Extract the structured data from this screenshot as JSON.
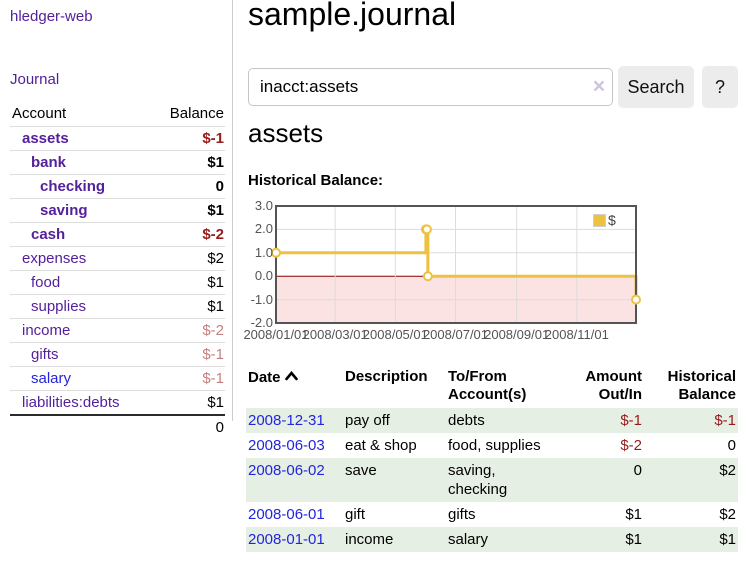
{
  "sidebar": {
    "brand": "hledger-web",
    "nav": {
      "journal": "Journal"
    },
    "accounts_table": {
      "headers": {
        "account": "Account",
        "balance": "Balance"
      },
      "rows": [
        {
          "name": "assets",
          "depth": 1,
          "bold": true,
          "link_color": "purple",
          "balance": "$-1",
          "balance_style": "neg"
        },
        {
          "name": "bank",
          "depth": 2,
          "bold": true,
          "link_color": "purple",
          "balance": "$1",
          "balance_style": "pos"
        },
        {
          "name": "checking",
          "depth": 3,
          "bold": true,
          "link_color": "purple",
          "balance": "0",
          "balance_style": "pos"
        },
        {
          "name": "saving",
          "depth": 3,
          "bold": true,
          "link_color": "purple",
          "balance": "$1",
          "balance_style": "pos"
        },
        {
          "name": "cash",
          "depth": 2,
          "bold": true,
          "link_color": "purple",
          "balance": "$-2",
          "balance_style": "neg"
        },
        {
          "name": "expenses",
          "depth": 1,
          "bold": false,
          "link_color": "purple",
          "balance": "$2",
          "balance_style": "pos"
        },
        {
          "name": "food",
          "depth": 2,
          "bold": false,
          "link_color": "purple",
          "balance": "$1",
          "balance_style": "pos"
        },
        {
          "name": "supplies",
          "depth": 2,
          "bold": false,
          "link_color": "purple",
          "balance": "$1",
          "balance_style": "pos"
        },
        {
          "name": "income",
          "depth": 1,
          "bold": false,
          "link_color": "purple",
          "balance": "$-2",
          "balance_style": "dim-neg"
        },
        {
          "name": "gifts",
          "depth": 2,
          "bold": false,
          "link_color": "purple",
          "balance": "$-1",
          "balance_style": "dim-neg"
        },
        {
          "name": "salary",
          "depth": 2,
          "bold": false,
          "link_color": "blue",
          "balance": "$-1",
          "balance_style": "dim-neg"
        },
        {
          "name": "liabilities:debts",
          "depth": 1,
          "bold": false,
          "link_color": "purple",
          "balance": "$1",
          "balance_style": "pos"
        }
      ],
      "total": "0"
    }
  },
  "header": {
    "title": "sample.journal",
    "search": {
      "value": "inacct:assets",
      "button": "Search",
      "help_button": "?"
    }
  },
  "icons": {
    "clear_search": "×",
    "sort_ascending": "chevron-up"
  },
  "account_page": {
    "heading": "assets"
  },
  "chart_data": {
    "type": "line",
    "step": true,
    "title": "Historical Balance:",
    "series": [
      {
        "name": "$",
        "color": "#edc240",
        "points": [
          [
            "2008-01-01",
            1
          ],
          [
            "2008-06-01",
            2
          ],
          [
            "2008-06-02",
            2
          ],
          [
            "2008-06-03",
            0
          ],
          [
            "2008-12-31",
            -1
          ]
        ]
      }
    ],
    "ylim": [
      -2.0,
      3.0
    ],
    "yticks": [
      "3.0",
      "2.0",
      "1.0",
      "0.0",
      "-1.0",
      "-2.0"
    ],
    "ytick_values": [
      3,
      2,
      1,
      0,
      -1,
      -2
    ],
    "xticks": [
      "2008/01/01",
      "2008/03/01",
      "2008/05/01",
      "2008/07/01",
      "2008/09/01",
      "2008/11/01"
    ],
    "legend": "$",
    "legend_position": "top-right",
    "grid": true,
    "colors": {
      "grid_line": "#dcdcdc",
      "border": "#545454",
      "zero_line": "#8b0000",
      "negative_region": "#fbe3e3",
      "marker_fill": "#ffffff"
    }
  },
  "register": {
    "headers": {
      "date": "Date",
      "description": "Description",
      "accounts": "To/From Account(s)",
      "amount": "Amount Out/In",
      "balance": "Historical Balance"
    },
    "rows": [
      {
        "date": "2008-12-31",
        "description": "pay off",
        "accounts": "debts",
        "amount": "$-1",
        "amount_negative": true,
        "balance": "$-1",
        "balance_negative": true
      },
      {
        "date": "2008-06-03",
        "description": "eat & shop",
        "accounts": "food, supplies",
        "amount": "$-2",
        "amount_negative": true,
        "balance": "0",
        "balance_negative": false
      },
      {
        "date": "2008-06-02",
        "description": "save",
        "accounts": "saving, checking",
        "amount": "0",
        "amount_negative": false,
        "balance": "$2",
        "balance_negative": false
      },
      {
        "date": "2008-06-01",
        "description": "gift",
        "accounts": "gifts",
        "amount": "$1",
        "amount_negative": false,
        "balance": "$2",
        "balance_negative": false
      },
      {
        "date": "2008-01-01",
        "description": "income",
        "accounts": "salary",
        "amount": "$1",
        "amount_negative": false,
        "balance": "$1",
        "balance_negative": false
      }
    ]
  }
}
